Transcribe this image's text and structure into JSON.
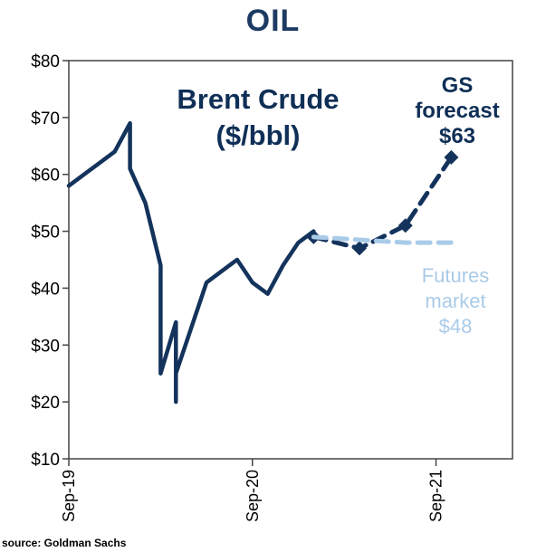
{
  "chart_data": {
    "type": "line",
    "title": "OIL",
    "xlabel": "",
    "ylabel": "",
    "ylim": [
      10,
      80
    ],
    "yticks": [
      10,
      20,
      30,
      40,
      50,
      60,
      70,
      80
    ],
    "ytick_labels": [
      "$10",
      "$20",
      "$30",
      "$40",
      "$50",
      "$60",
      "$70",
      "$80"
    ],
    "xlim": [
      "2019-09",
      "2022-02"
    ],
    "xticks": [
      "2019-09",
      "2020-09",
      "2021-09"
    ],
    "xtick_labels": [
      "Sep-19",
      "Sep-20",
      "Sep-21"
    ],
    "grid": false,
    "series": [
      {
        "name": "Brent Crude ($/bbl)",
        "style": "solid",
        "color": "#14335c",
        "x": [
          "2019-09",
          "2019-10",
          "2019-11",
          "2019-12",
          "2020-01",
          "2020-01",
          "2020-02",
          "2020-03",
          "2020-03",
          "2020-04",
          "2020-04",
          "2020-04",
          "2020-05",
          "2020-06",
          "2020-07",
          "2020-08",
          "2020-09",
          "2020-10",
          "2020-11",
          "2020-12",
          "2021-01"
        ],
        "values": [
          58,
          60,
          62,
          64,
          69,
          61,
          55,
          44,
          25,
          34,
          20,
          25,
          33,
          41,
          43,
          45,
          41,
          39,
          44,
          48,
          50
        ]
      },
      {
        "name": "GS forecast $63",
        "style": "dashed",
        "color": "#14335c",
        "x": [
          "2021-01",
          "2021-04",
          "2021-07",
          "2021-10"
        ],
        "values": [
          49,
          47,
          51,
          63
        ]
      },
      {
        "name": "Futures market $48",
        "style": "dashed",
        "color": "#a9cbe8",
        "x": [
          "2021-01",
          "2021-04",
          "2021-07",
          "2021-10"
        ],
        "values": [
          49,
          48.5,
          48,
          48
        ]
      }
    ],
    "annotations": {
      "series_title_line1": "Brent  Crude",
      "series_title_line2": "($/bbl)",
      "gs_line1": "GS",
      "gs_line2": "forecast",
      "gs_line3": "$63",
      "futures_line1": "Futures",
      "futures_line2": "market",
      "futures_line3": "$48"
    }
  },
  "source": "source: Goldman Sachs"
}
